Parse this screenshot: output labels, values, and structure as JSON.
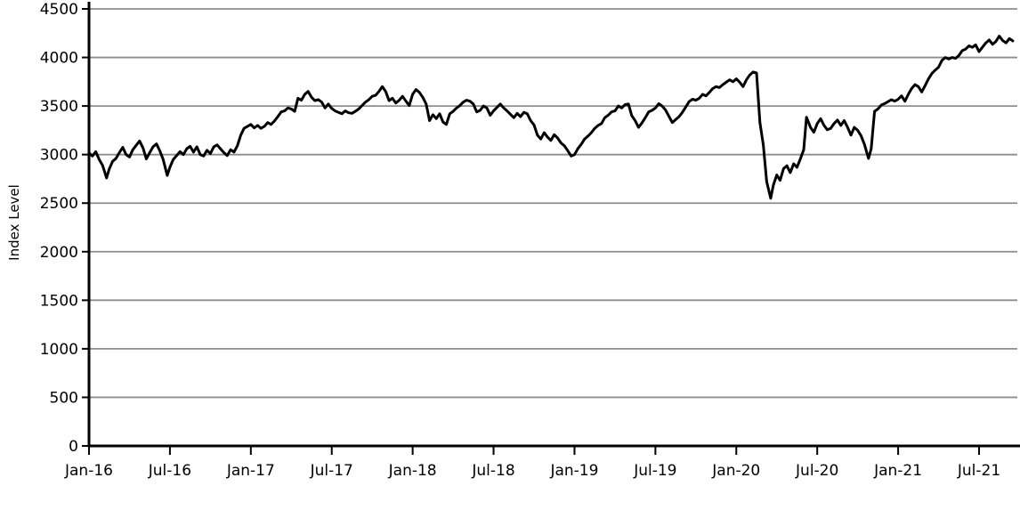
{
  "chart": {
    "line_color": "#000000",
    "grid_color": "#8e8e8e",
    "axis_color": "#000000",
    "background_color": "#ffffff",
    "y_ticks": [
      0,
      500,
      1000,
      1500,
      2000,
      2500,
      3000,
      3500,
      4000,
      4500
    ],
    "x_ticks": [
      {
        "label": "Jan-16",
        "t": 0
      },
      {
        "label": "Jul-16",
        "t": 6
      },
      {
        "label": "Jan-17",
        "t": 12
      },
      {
        "label": "Jul-17",
        "t": 18
      },
      {
        "label": "Jan-18",
        "t": 24
      },
      {
        "label": "Jul-18",
        "t": 30
      },
      {
        "label": "Jan-19",
        "t": 36
      },
      {
        "label": "Jul-19",
        "t": 42
      },
      {
        "label": "Jan-20",
        "t": 48
      },
      {
        "label": "Jul-20",
        "t": 54
      },
      {
        "label": "Jan-21",
        "t": 60
      },
      {
        "label": "Jul-21",
        "t": 66
      }
    ]
  },
  "chart_data": {
    "type": "line",
    "title": "",
    "xlabel": "",
    "ylabel": "Index Level",
    "ylim": [
      0,
      4500
    ],
    "grid": true,
    "legend": false,
    "x_unit": "months since Jan-2016",
    "x_tick_labels": [
      "Jan-16",
      "Jul-16",
      "Jan-17",
      "Jul-17",
      "Jan-18",
      "Jul-18",
      "Jan-19",
      "Jul-19",
      "Jan-20",
      "Jul-20",
      "Jan-21",
      "Jul-21"
    ],
    "series": [
      {
        "name": "Index Level",
        "points": [
          [
            0.0,
            3020
          ],
          [
            0.25,
            2985
          ],
          [
            0.5,
            3030
          ],
          [
            0.75,
            2950
          ],
          [
            1.0,
            2890
          ],
          [
            1.3,
            2760
          ],
          [
            1.5,
            2850
          ],
          [
            1.75,
            2930
          ],
          [
            2.0,
            2960
          ],
          [
            2.25,
            3020
          ],
          [
            2.5,
            3075
          ],
          [
            2.75,
            3000
          ],
          [
            3.0,
            2975
          ],
          [
            3.25,
            3050
          ],
          [
            3.5,
            3095
          ],
          [
            3.75,
            3140
          ],
          [
            4.0,
            3070
          ],
          [
            4.25,
            2955
          ],
          [
            4.5,
            3020
          ],
          [
            4.75,
            3080
          ],
          [
            5.0,
            3110
          ],
          [
            5.25,
            3040
          ],
          [
            5.5,
            2950
          ],
          [
            5.8,
            2785
          ],
          [
            6.0,
            2870
          ],
          [
            6.25,
            2950
          ],
          [
            6.5,
            2990
          ],
          [
            6.75,
            3030
          ],
          [
            7.0,
            3000
          ],
          [
            7.25,
            3060
          ],
          [
            7.5,
            3085
          ],
          [
            7.75,
            3025
          ],
          [
            8.0,
            3080
          ],
          [
            8.25,
            3000
          ],
          [
            8.5,
            2985
          ],
          [
            8.75,
            3045
          ],
          [
            9.0,
            3010
          ],
          [
            9.25,
            3080
          ],
          [
            9.5,
            3100
          ],
          [
            9.75,
            3060
          ],
          [
            10.0,
            3020
          ],
          [
            10.25,
            2990
          ],
          [
            10.5,
            3050
          ],
          [
            10.75,
            3025
          ],
          [
            11.0,
            3090
          ],
          [
            11.25,
            3200
          ],
          [
            11.5,
            3270
          ],
          [
            11.75,
            3290
          ],
          [
            12.0,
            3310
          ],
          [
            12.25,
            3275
          ],
          [
            12.5,
            3300
          ],
          [
            12.75,
            3270
          ],
          [
            13.0,
            3290
          ],
          [
            13.25,
            3330
          ],
          [
            13.5,
            3310
          ],
          [
            13.75,
            3345
          ],
          [
            14.0,
            3390
          ],
          [
            14.25,
            3440
          ],
          [
            14.5,
            3450
          ],
          [
            14.75,
            3480
          ],
          [
            15.0,
            3470
          ],
          [
            15.25,
            3445
          ],
          [
            15.5,
            3580
          ],
          [
            15.75,
            3560
          ],
          [
            16.0,
            3620
          ],
          [
            16.25,
            3650
          ],
          [
            16.5,
            3590
          ],
          [
            16.75,
            3555
          ],
          [
            17.0,
            3565
          ],
          [
            17.25,
            3540
          ],
          [
            17.5,
            3480
          ],
          [
            17.75,
            3520
          ],
          [
            18.0,
            3475
          ],
          [
            18.25,
            3450
          ],
          [
            18.5,
            3435
          ],
          [
            18.75,
            3420
          ],
          [
            19.0,
            3450
          ],
          [
            19.25,
            3430
          ],
          [
            19.5,
            3425
          ],
          [
            19.75,
            3445
          ],
          [
            20.0,
            3470
          ],
          [
            20.25,
            3505
          ],
          [
            20.5,
            3540
          ],
          [
            20.75,
            3565
          ],
          [
            21.0,
            3600
          ],
          [
            21.25,
            3610
          ],
          [
            21.5,
            3650
          ],
          [
            21.75,
            3700
          ],
          [
            22.0,
            3650
          ],
          [
            22.25,
            3555
          ],
          [
            22.5,
            3580
          ],
          [
            22.75,
            3530
          ],
          [
            23.0,
            3560
          ],
          [
            23.25,
            3600
          ],
          [
            23.5,
            3550
          ],
          [
            23.75,
            3505
          ],
          [
            24.0,
            3620
          ],
          [
            24.25,
            3670
          ],
          [
            24.5,
            3640
          ],
          [
            24.75,
            3590
          ],
          [
            25.0,
            3520
          ],
          [
            25.25,
            3350
          ],
          [
            25.5,
            3410
          ],
          [
            25.75,
            3370
          ],
          [
            26.0,
            3420
          ],
          [
            26.25,
            3335
          ],
          [
            26.5,
            3310
          ],
          [
            26.75,
            3420
          ],
          [
            27.0,
            3445
          ],
          [
            27.25,
            3480
          ],
          [
            27.5,
            3505
          ],
          [
            27.75,
            3540
          ],
          [
            28.0,
            3560
          ],
          [
            28.25,
            3550
          ],
          [
            28.5,
            3520
          ],
          [
            28.75,
            3440
          ],
          [
            29.0,
            3455
          ],
          [
            29.25,
            3500
          ],
          [
            29.5,
            3480
          ],
          [
            29.75,
            3405
          ],
          [
            30.0,
            3450
          ],
          [
            30.25,
            3485
          ],
          [
            30.5,
            3520
          ],
          [
            30.75,
            3480
          ],
          [
            31.0,
            3450
          ],
          [
            31.25,
            3415
          ],
          [
            31.5,
            3380
          ],
          [
            31.75,
            3425
          ],
          [
            32.0,
            3390
          ],
          [
            32.25,
            3435
          ],
          [
            32.5,
            3420
          ],
          [
            32.75,
            3350
          ],
          [
            33.0,
            3305
          ],
          [
            33.25,
            3200
          ],
          [
            33.5,
            3160
          ],
          [
            33.75,
            3225
          ],
          [
            34.0,
            3180
          ],
          [
            34.25,
            3145
          ],
          [
            34.5,
            3205
          ],
          [
            34.75,
            3170
          ],
          [
            35.0,
            3120
          ],
          [
            35.25,
            3090
          ],
          [
            35.5,
            3040
          ],
          [
            35.75,
            2985
          ],
          [
            36.0,
            3000
          ],
          [
            36.25,
            3060
          ],
          [
            36.5,
            3105
          ],
          [
            36.75,
            3160
          ],
          [
            37.0,
            3190
          ],
          [
            37.25,
            3225
          ],
          [
            37.5,
            3270
          ],
          [
            37.75,
            3300
          ],
          [
            38.0,
            3320
          ],
          [
            38.25,
            3380
          ],
          [
            38.5,
            3405
          ],
          [
            38.75,
            3440
          ],
          [
            39.0,
            3450
          ],
          [
            39.25,
            3500
          ],
          [
            39.5,
            3480
          ],
          [
            39.75,
            3515
          ],
          [
            40.0,
            3520
          ],
          [
            40.25,
            3400
          ],
          [
            40.5,
            3350
          ],
          [
            40.75,
            3280
          ],
          [
            41.0,
            3325
          ],
          [
            41.25,
            3380
          ],
          [
            41.5,
            3440
          ],
          [
            41.75,
            3455
          ],
          [
            42.0,
            3480
          ],
          [
            42.25,
            3525
          ],
          [
            42.5,
            3500
          ],
          [
            42.75,
            3460
          ],
          [
            43.0,
            3395
          ],
          [
            43.25,
            3330
          ],
          [
            43.5,
            3360
          ],
          [
            43.75,
            3390
          ],
          [
            44.0,
            3435
          ],
          [
            44.25,
            3490
          ],
          [
            44.5,
            3545
          ],
          [
            44.75,
            3570
          ],
          [
            45.0,
            3560
          ],
          [
            45.25,
            3580
          ],
          [
            45.5,
            3620
          ],
          [
            45.75,
            3605
          ],
          [
            46.0,
            3640
          ],
          [
            46.25,
            3680
          ],
          [
            46.5,
            3700
          ],
          [
            46.75,
            3690
          ],
          [
            47.0,
            3720
          ],
          [
            47.25,
            3745
          ],
          [
            47.5,
            3770
          ],
          [
            47.75,
            3750
          ],
          [
            48.0,
            3780
          ],
          [
            48.25,
            3745
          ],
          [
            48.5,
            3700
          ],
          [
            48.75,
            3770
          ],
          [
            49.0,
            3820
          ],
          [
            49.25,
            3850
          ],
          [
            49.5,
            3840
          ],
          [
            49.75,
            3330
          ],
          [
            50.0,
            3100
          ],
          [
            50.25,
            2720
          ],
          [
            50.55,
            2550
          ],
          [
            50.75,
            2685
          ],
          [
            51.0,
            2790
          ],
          [
            51.25,
            2735
          ],
          [
            51.5,
            2855
          ],
          [
            51.75,
            2885
          ],
          [
            52.0,
            2815
          ],
          [
            52.25,
            2905
          ],
          [
            52.5,
            2870
          ],
          [
            52.75,
            2955
          ],
          [
            53.0,
            3050
          ],
          [
            53.2,
            3385
          ],
          [
            53.5,
            3280
          ],
          [
            53.75,
            3230
          ],
          [
            54.0,
            3320
          ],
          [
            54.25,
            3370
          ],
          [
            54.5,
            3300
          ],
          [
            54.75,
            3255
          ],
          [
            55.0,
            3270
          ],
          [
            55.25,
            3320
          ],
          [
            55.5,
            3355
          ],
          [
            55.75,
            3300
          ],
          [
            56.0,
            3350
          ],
          [
            56.25,
            3280
          ],
          [
            56.5,
            3200
          ],
          [
            56.75,
            3280
          ],
          [
            57.0,
            3250
          ],
          [
            57.25,
            3195
          ],
          [
            57.5,
            3105
          ],
          [
            57.8,
            2960
          ],
          [
            58.0,
            3060
          ],
          [
            58.25,
            3445
          ],
          [
            58.5,
            3470
          ],
          [
            58.75,
            3510
          ],
          [
            59.0,
            3525
          ],
          [
            59.25,
            3545
          ],
          [
            59.5,
            3565
          ],
          [
            59.75,
            3550
          ],
          [
            60.0,
            3570
          ],
          [
            60.25,
            3605
          ],
          [
            60.5,
            3550
          ],
          [
            60.75,
            3620
          ],
          [
            61.0,
            3680
          ],
          [
            61.25,
            3720
          ],
          [
            61.5,
            3700
          ],
          [
            61.75,
            3645
          ],
          [
            62.0,
            3710
          ],
          [
            62.25,
            3780
          ],
          [
            62.5,
            3835
          ],
          [
            62.75,
            3870
          ],
          [
            63.0,
            3900
          ],
          [
            63.25,
            3970
          ],
          [
            63.5,
            4000
          ],
          [
            63.75,
            3985
          ],
          [
            64.0,
            4000
          ],
          [
            64.25,
            3990
          ],
          [
            64.5,
            4020
          ],
          [
            64.75,
            4070
          ],
          [
            65.0,
            4085
          ],
          [
            65.25,
            4120
          ],
          [
            65.5,
            4105
          ],
          [
            65.75,
            4130
          ],
          [
            66.0,
            4060
          ],
          [
            66.25,
            4105
          ],
          [
            66.5,
            4150
          ],
          [
            66.75,
            4180
          ],
          [
            67.0,
            4135
          ],
          [
            67.25,
            4165
          ],
          [
            67.5,
            4220
          ],
          [
            67.75,
            4175
          ],
          [
            68.0,
            4150
          ],
          [
            68.25,
            4195
          ],
          [
            68.5,
            4170
          ]
        ]
      }
    ]
  }
}
